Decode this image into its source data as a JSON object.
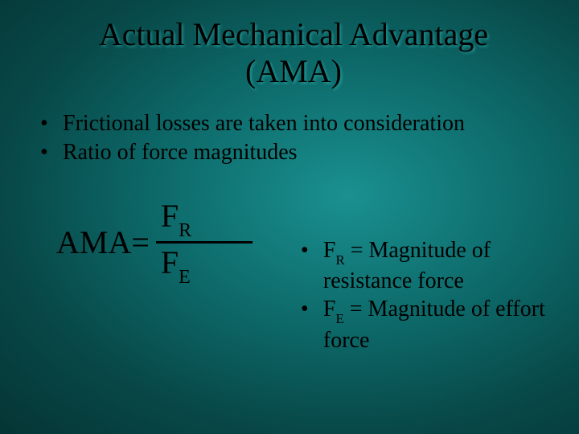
{
  "title": {
    "line1": "Actual Mechanical Advantage",
    "line2": "(AMA)"
  },
  "bullets": [
    "Frictional losses are taken into consideration",
    "Ratio of force magnitudes"
  ],
  "formula": {
    "label": "AMA=",
    "numerator_base": "F",
    "numerator_sub": "R",
    "denominator_base": "F",
    "denominator_sub": "E"
  },
  "definitions": [
    {
      "base1": "F",
      "sub1": "R",
      "rest": " = Magnitude of resistance force"
    },
    {
      "base1": "F",
      "sub1": "E",
      "rest": " = Magnitude of effort force"
    }
  ],
  "style": {
    "background_gradient": [
      "#1a9090",
      "#0d6868",
      "#084848",
      "#053535"
    ],
    "text_color": "#000000",
    "title_fontsize": 40,
    "body_fontsize": 28,
    "formula_fontsize": 40,
    "font_family": "Times New Roman"
  }
}
